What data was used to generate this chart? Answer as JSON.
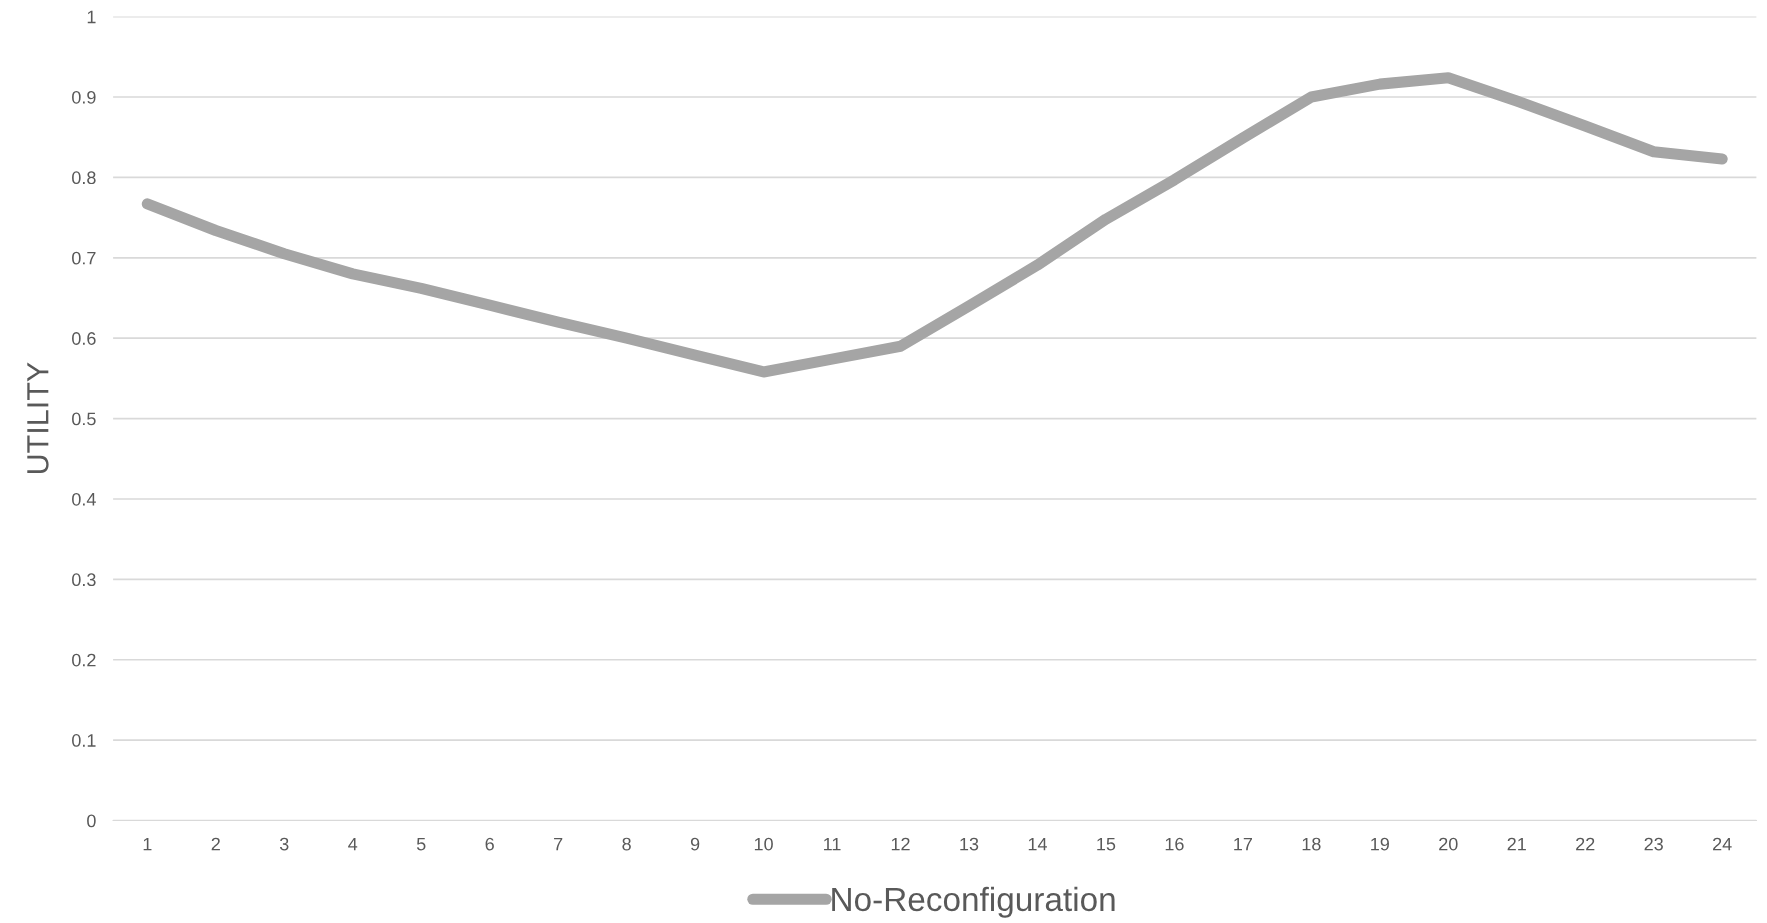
{
  "chart_data": {
    "type": "line",
    "ylabel": "UTILITY",
    "categories": [
      "1",
      "2",
      "3",
      "4",
      "5",
      "6",
      "7",
      "8",
      "9",
      "10",
      "11",
      "12",
      "13",
      "14",
      "15",
      "16",
      "17",
      "18",
      "19",
      "20",
      "21",
      "22",
      "23",
      "24"
    ],
    "series": [
      {
        "name": "No-Reconfiguration",
        "color": "#a5a5a5",
        "values": [
          0.767,
          0.734,
          0.705,
          0.68,
          0.662,
          0.641,
          0.62,
          0.6,
          0.579,
          0.558,
          0.574,
          0.59,
          0.64,
          0.691,
          0.748,
          0.797,
          0.849,
          0.9,
          0.916,
          0.924,
          0.895,
          0.864,
          0.832,
          0.823
        ]
      }
    ],
    "ylim": [
      0,
      1
    ],
    "yticks": [
      0,
      0.1,
      0.2,
      0.3,
      0.4,
      0.5,
      0.6,
      0.7,
      0.8,
      0.9,
      1
    ],
    "grid": "y",
    "legend": "bottom",
    "line_style": "solid"
  }
}
